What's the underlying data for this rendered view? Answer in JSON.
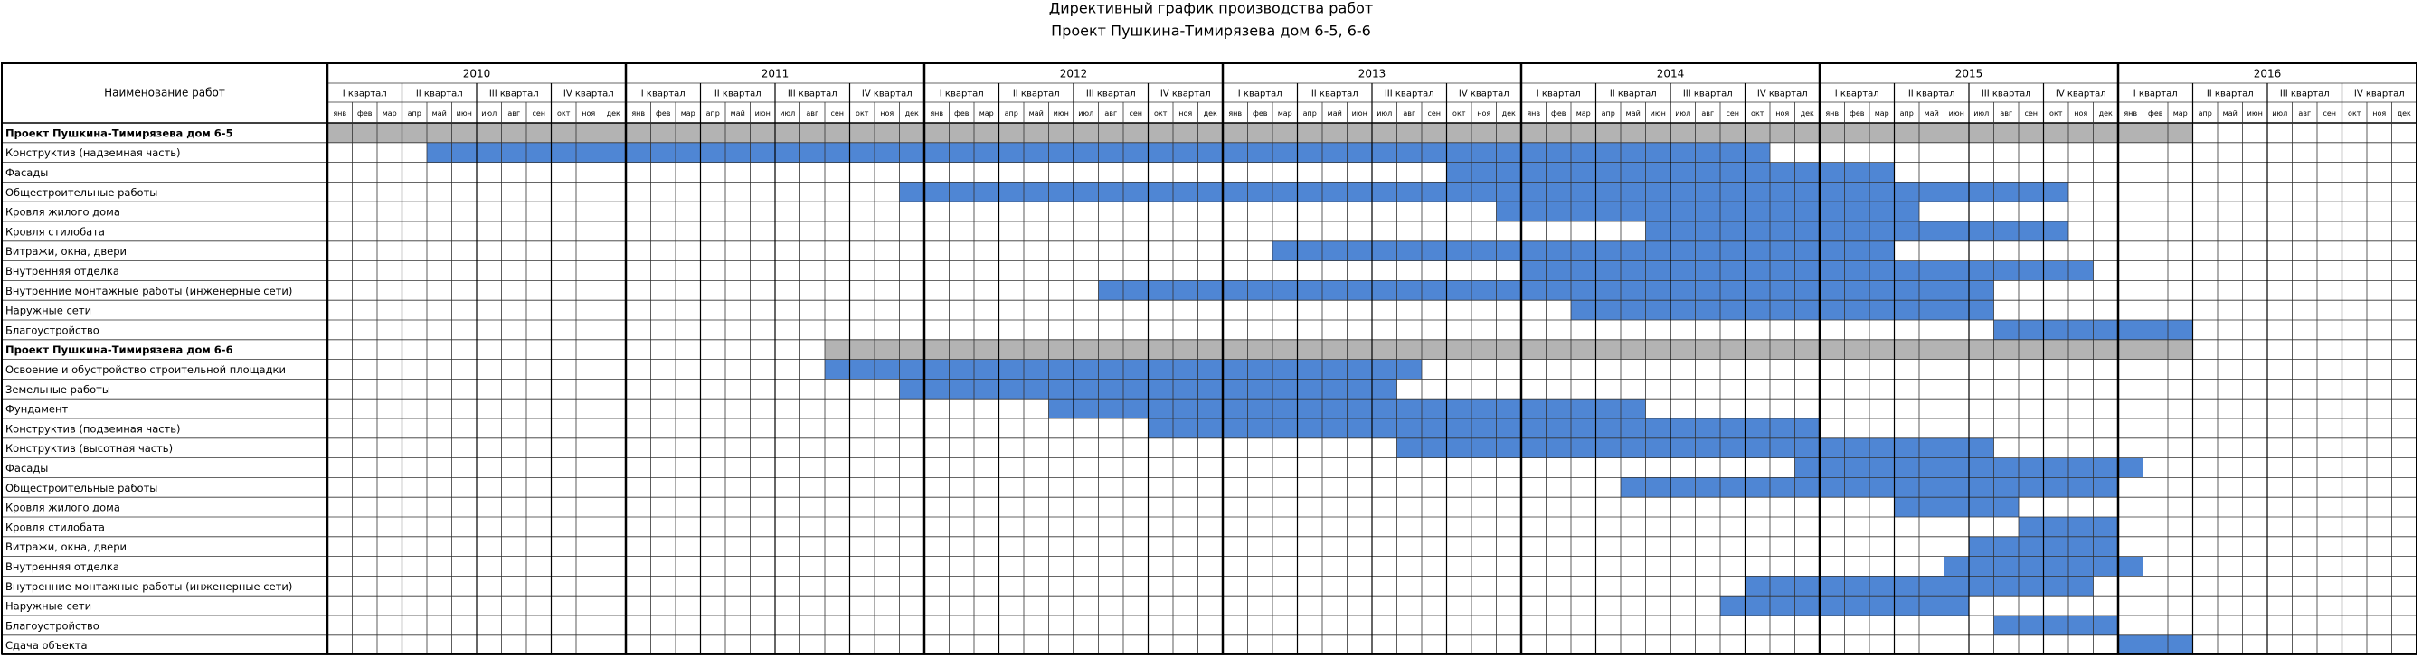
{
  "chart_data": {
    "type": "gantt",
    "title": "Директивный график производства работ",
    "subtitle": "Проект Пушкина-Тимирязева дом 6-5, 6-6",
    "label_header": "Наименование работ",
    "years": [
      2010,
      2011,
      2012,
      2013,
      2014,
      2015,
      2016
    ],
    "quarters": [
      "I квартал",
      "II квартал",
      "III квартал",
      "IV квартал"
    ],
    "months": [
      "янв",
      "фев",
      "мар",
      "апр",
      "май",
      "июн",
      "июл",
      "авг",
      "сен",
      "окт",
      "ноя",
      "дек"
    ],
    "summary_color": "#b3b3b3",
    "bar_color": "#4f86d4",
    "groups": [
      {
        "name": "Проект Пушкина-Тимирязева дом 6-5",
        "start": "2010-01",
        "end": "2016-03",
        "tasks": [
          {
            "name": "Конструктив (надземная часть)",
            "start": "2010-05",
            "end": "2014-10"
          },
          {
            "name": "Фасады",
            "start": "2013-10",
            "end": "2015-03"
          },
          {
            "name": "Общестроительные работы",
            "start": "2011-12",
            "end": "2015-10"
          },
          {
            "name": "Кровля жилого дома",
            "start": "2013-12",
            "end": "2015-04"
          },
          {
            "name": "Кровля стилобата",
            "start": "2014-06",
            "end": "2015-10"
          },
          {
            "name": "Витражи, окна, двери",
            "start": "2013-03",
            "end": "2015-03"
          },
          {
            "name": "Внутренняя отделка",
            "start": "2014-01",
            "end": "2015-11"
          },
          {
            "name": "Внутренние монтажные работы (инженерные сети)",
            "start": "2012-08",
            "end": "2015-07"
          },
          {
            "name": "Наружные сети",
            "start": "2014-03",
            "end": "2015-07"
          },
          {
            "name": "Благоустройство",
            "start": "2015-08",
            "end": "2016-03"
          }
        ]
      },
      {
        "name": "Проект Пушкина-Тимирязева дом 6-6",
        "start": "2011-09",
        "end": "2016-03",
        "tasks": [
          {
            "name": "Освоение и обустройство строительной площадки",
            "start": "2011-09",
            "end": "2013-08"
          },
          {
            "name": "Земельные работы",
            "start": "2011-12",
            "end": "2013-07"
          },
          {
            "name": "Фундамент",
            "start": "2012-06",
            "end": "2014-05"
          },
          {
            "name": "Конструктив (подземная часть)",
            "start": "2012-10",
            "end": "2014-12"
          },
          {
            "name": "Конструктив (высотная часть)",
            "start": "2013-08",
            "end": "2015-07"
          },
          {
            "name": "Фасады",
            "start": "2014-12",
            "end": "2016-01"
          },
          {
            "name": "Общестроительные работы",
            "start": "2014-05",
            "end": "2015-12"
          },
          {
            "name": "Кровля жилого дома",
            "start": "2015-04",
            "end": "2015-08"
          },
          {
            "name": "Кровля стилобата",
            "start": "2015-09",
            "end": "2015-12"
          },
          {
            "name": "Витражи, окна, двери",
            "start": "2015-07",
            "end": "2015-12"
          },
          {
            "name": "Внутренняя отделка",
            "start": "2015-06",
            "end": "2016-01"
          },
          {
            "name": "Внутренние монтажные работы (инженерные сети)",
            "start": "2014-10",
            "end": "2015-11"
          },
          {
            "name": "Наружные сети",
            "start": "2014-09",
            "end": "2015-06"
          },
          {
            "name": "Благоустройство",
            "start": "2015-08",
            "end": "2015-12"
          },
          {
            "name": "Сдача объекта",
            "start": "2016-01",
            "end": "2016-03"
          }
        ]
      }
    ]
  }
}
